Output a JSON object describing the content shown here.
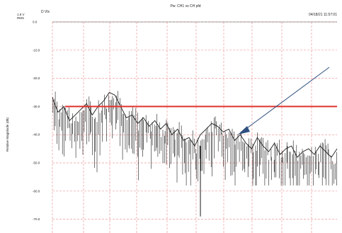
{
  "chart_data": {
    "type": "line",
    "title": "Pw: CH1 vs CH pfd",
    "corner_label": "D  Vlx",
    "timestamp": "04/18/21 11:57:01",
    "unit_top": "1.8 V",
    "unit_sub": "RMS",
    "ylabel": "Relative Magnitude (dB)",
    "ylim": [
      -70,
      0
    ],
    "yticks": [
      0,
      -10,
      -20,
      -30,
      -40,
      -50,
      -60,
      -70
    ],
    "ytick_labels": [
      "0.0",
      "-10.0",
      "-20.0",
      "-30.0",
      "-40.0",
      "-50.0",
      "-60.0",
      "-70.0"
    ],
    "xlim": [
      0,
      100
    ],
    "grid": true,
    "threshold": {
      "value": -30,
      "color": "#e0322b"
    },
    "series_color": "#1a1a1a",
    "grid_color": "#ef9a9a",
    "arrow_color": "#2f4f7f",
    "series": [
      {
        "x": [
          0,
          2,
          4,
          6,
          8,
          10,
          12,
          14,
          16,
          18,
          20,
          22,
          24,
          26,
          28,
          30,
          32,
          34,
          36,
          38,
          40,
          42,
          44,
          46,
          48,
          50,
          52,
          54,
          56,
          58,
          60,
          62,
          64,
          66,
          68,
          70,
          72,
          74,
          76,
          78,
          80,
          82,
          84,
          86,
          88,
          90,
          92,
          94,
          96,
          98,
          100
        ],
        "y": [
          -27,
          -32,
          -30,
          -35,
          -33,
          -31,
          -29,
          -33,
          -30,
          -28,
          -25,
          -26,
          -30,
          -34,
          -33,
          -36,
          -34,
          -37,
          -35,
          -38,
          -36,
          -40,
          -38,
          -42,
          -41,
          -44,
          -40,
          -38,
          -36,
          -37,
          -39,
          -38,
          -42,
          -40,
          -43,
          -45,
          -41,
          -44,
          -46,
          -43,
          -47,
          -45,
          -44,
          -48,
          -46,
          -45,
          -47,
          -44,
          -46,
          -48,
          -45
        ]
      }
    ],
    "noise_min_y": -58,
    "spike_y": -69
  },
  "annotation": {
    "arrow": true
  }
}
